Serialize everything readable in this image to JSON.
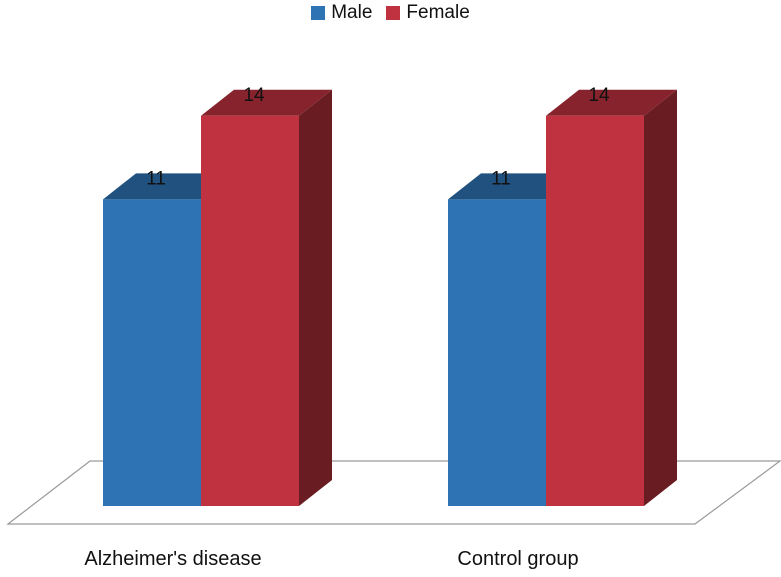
{
  "chart_data": {
    "type": "bar",
    "title": "",
    "xlabel": "",
    "ylabel": "",
    "categories": [
      "Alzheimer's disease",
      "Control group"
    ],
    "series": [
      {
        "name": "Male",
        "values": [
          11,
          11
        ],
        "color": "#2e74b5"
      },
      {
        "name": "Female",
        "values": [
          14,
          14
        ],
        "color": "#c0323f"
      }
    ],
    "ylim": [
      0,
      16
    ],
    "grid": false,
    "legend_position": "top-center",
    "style": "3d-clustered-column"
  }
}
